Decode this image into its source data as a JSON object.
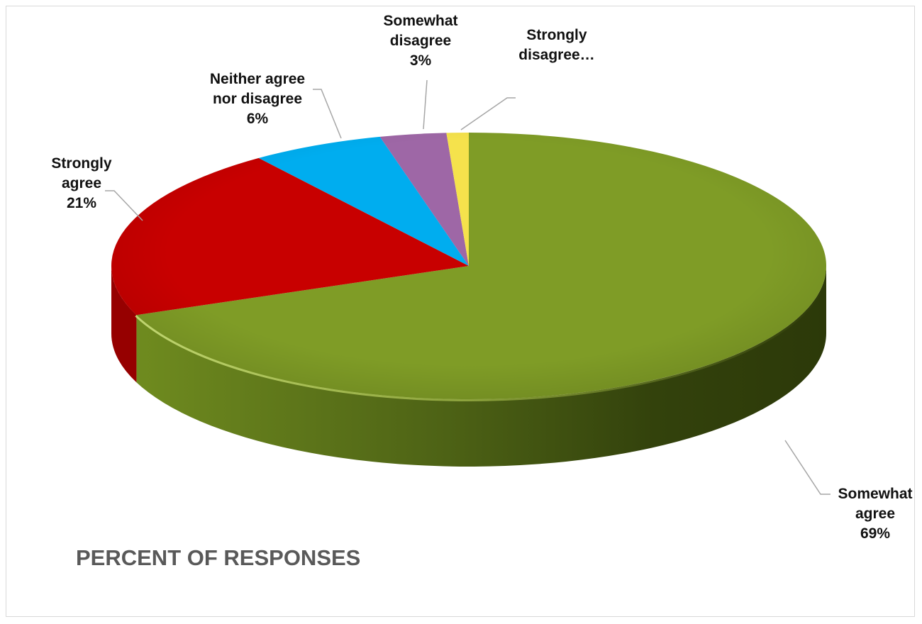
{
  "chart_data": {
    "type": "pie",
    "title": "PERCENT OF RESPONSES",
    "legend": "none",
    "style": "3d",
    "slices": [
      {
        "label": "Somewhat agree",
        "value": 69,
        "value_label": "69%",
        "display_lines": [
          "Somewhat",
          "agree",
          "69%"
        ],
        "color": "#7f9c26"
      },
      {
        "label": "Strongly agree",
        "value": 21,
        "value_label": "21%",
        "display_lines": [
          "Strongly",
          "agree",
          "21%"
        ],
        "color": "#c80000"
      },
      {
        "label": "Neither agree nor disagree",
        "value": 6,
        "value_label": "6%",
        "display_lines": [
          "Neither agree",
          "nor disagree",
          "6%"
        ],
        "color": "#00adef"
      },
      {
        "label": "Somewhat disagree",
        "value": 3,
        "value_label": "3%",
        "display_lines": [
          "Somewhat",
          "disagree",
          "3%"
        ],
        "color": "#9e67a6"
      },
      {
        "label": "Strongly disagree",
        "value": 1,
        "value_label": "",
        "display_lines": [
          "Strongly",
          "disagree…"
        ],
        "color": "#f5e24c"
      }
    ]
  }
}
